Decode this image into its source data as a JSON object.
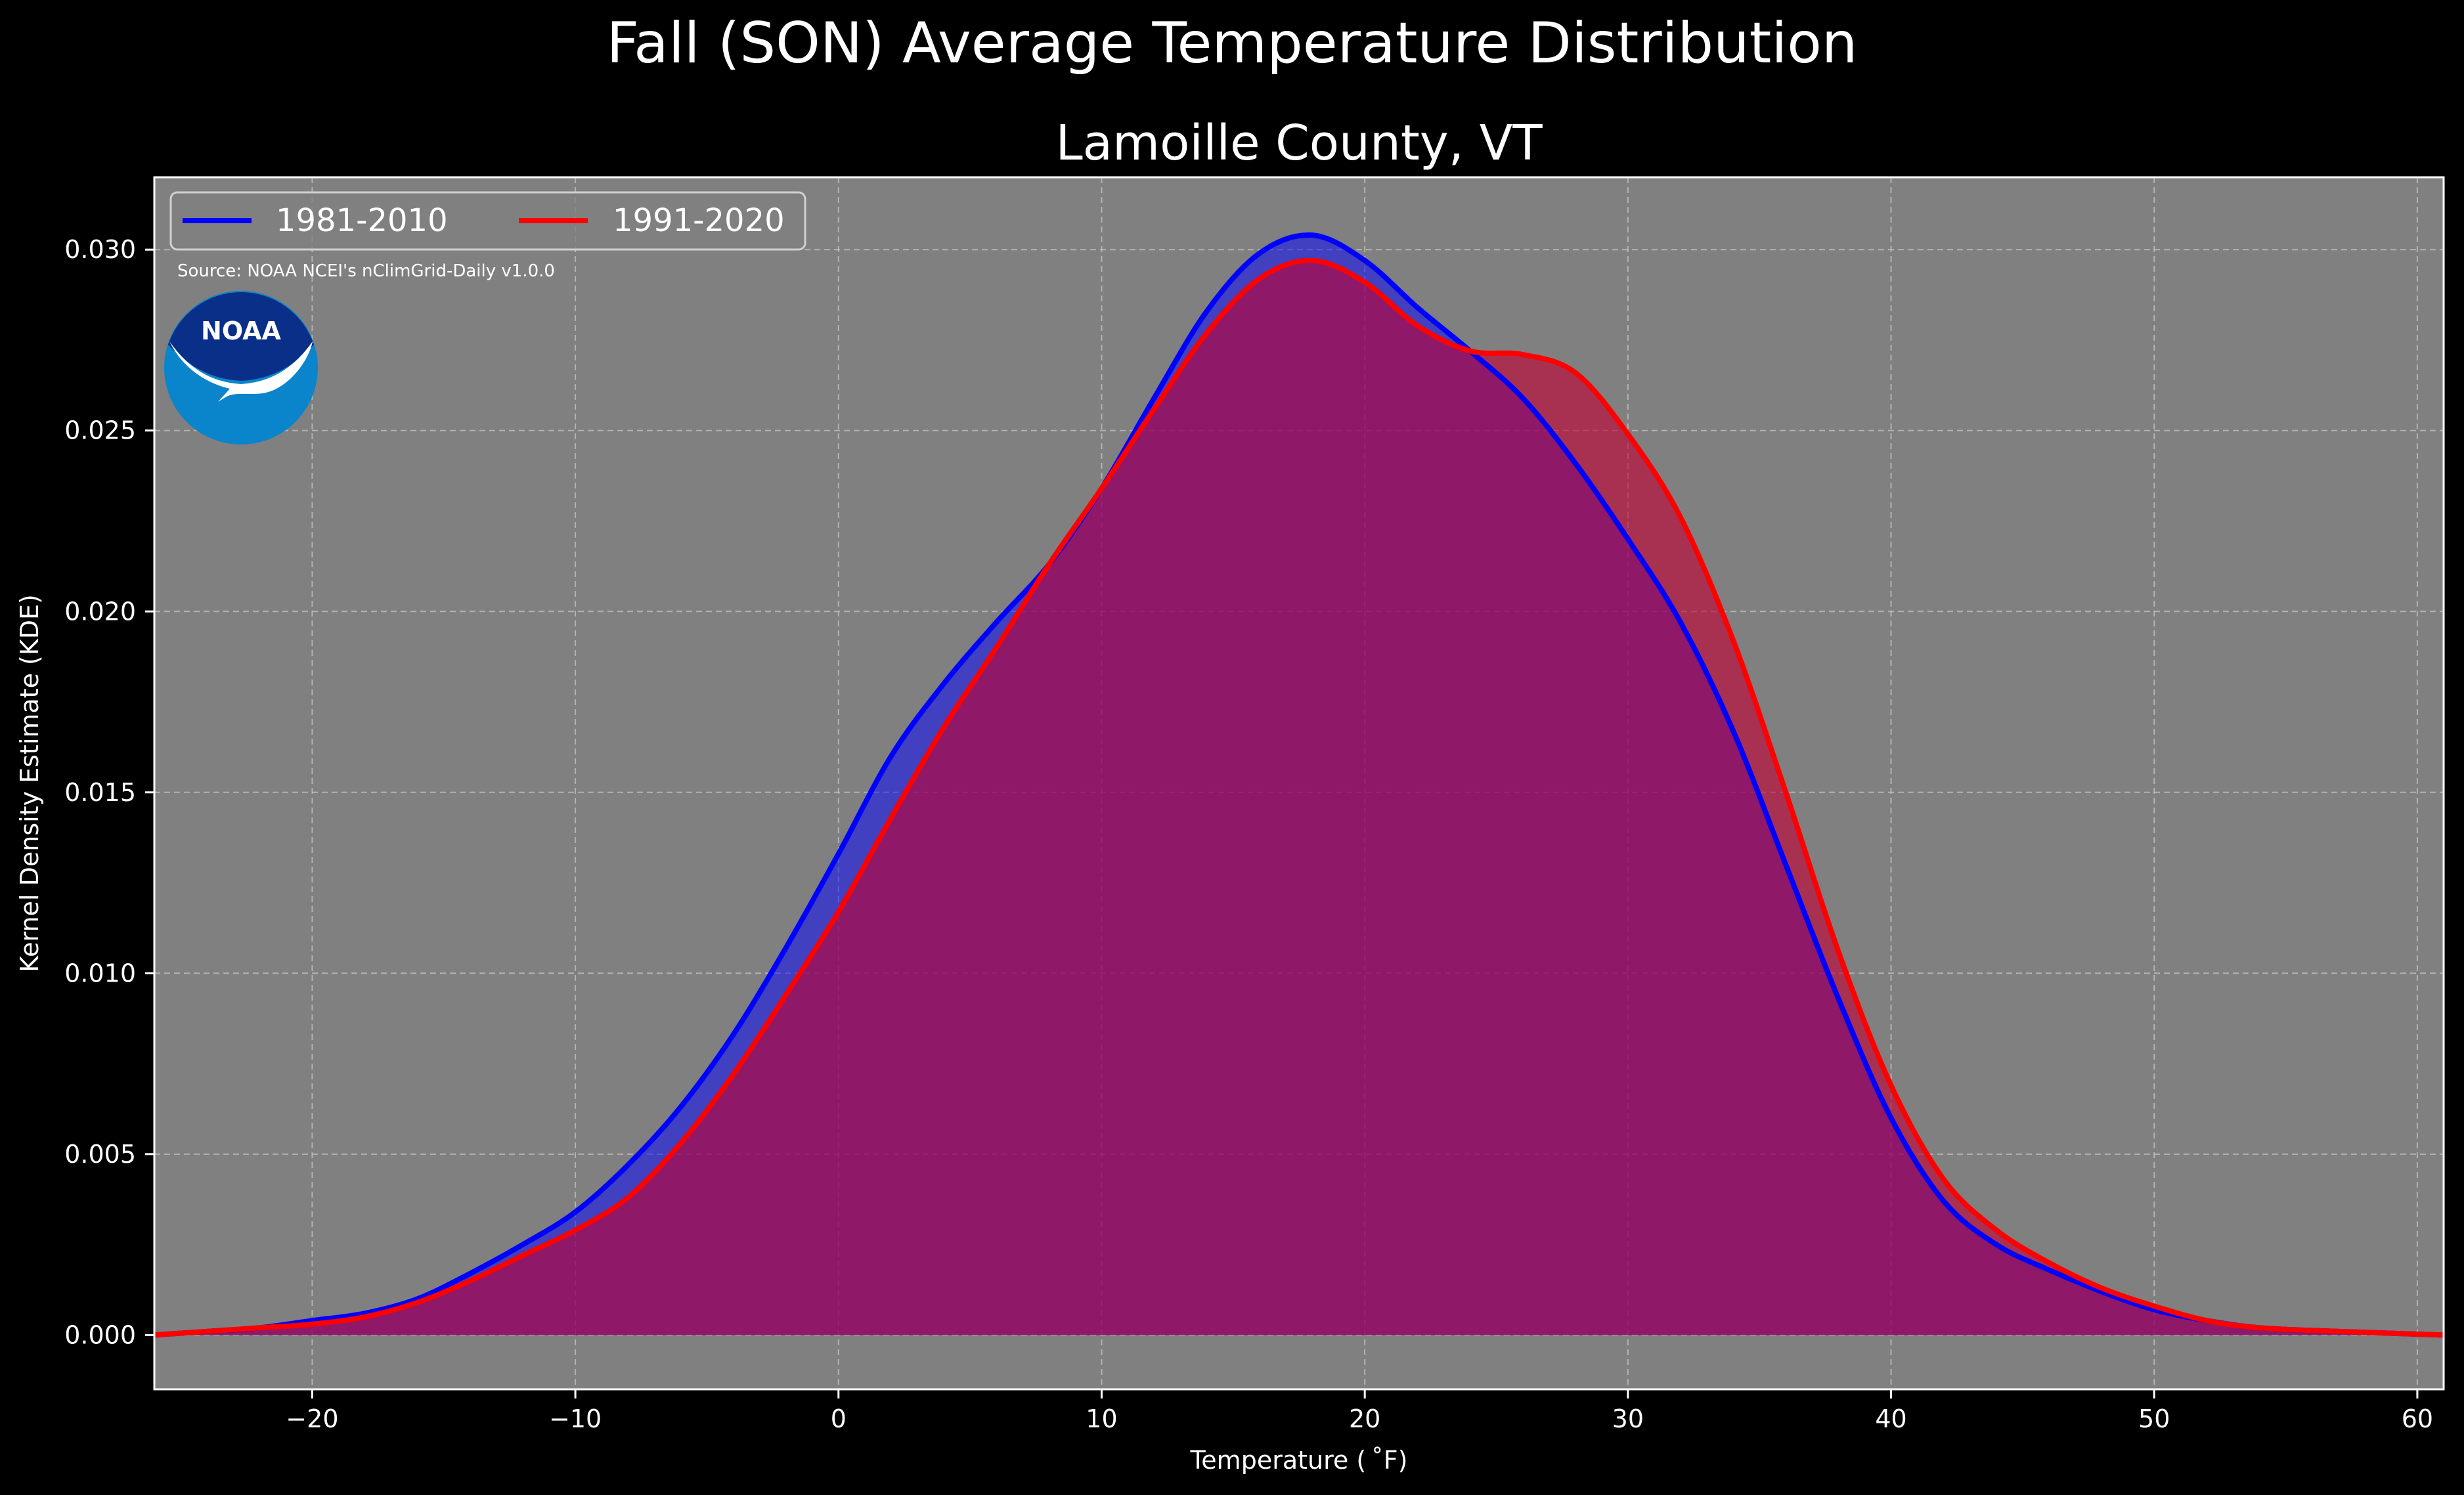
{
  "chart_data": {
    "type": "area",
    "title": "Fall (SON) Average Temperature Distribution",
    "subtitle": "Lamoille County, VT",
    "xlabel": "Temperature ($^\\circ$F)",
    "xlabel_display": "Temperature ( ˚F)",
    "ylabel": "Kernel Density Estimate (KDE)",
    "xlim": [
      -26,
      61
    ],
    "ylim": [
      -0.0015,
      0.032
    ],
    "xticks": [
      -20,
      -10,
      0,
      10,
      20,
      30,
      40,
      50,
      60
    ],
    "xtick_labels": [
      "−20",
      "−10",
      "0",
      "10",
      "20",
      "30",
      "40",
      "50",
      "60"
    ],
    "yticks": [
      0.0,
      0.005,
      0.01,
      0.015,
      0.02,
      0.025,
      0.03
    ],
    "ytick_labels": [
      "0.000",
      "0.005",
      "0.010",
      "0.015",
      "0.020",
      "0.025",
      "0.030"
    ],
    "grid": true,
    "legend_position": "top-left",
    "annotation": "Source: NOAA NCEI's nClimGrid-Daily v1.0.0",
    "logo_text": "NOAA",
    "background": "#808080",
    "series": [
      {
        "name": "1981-2010",
        "color": "#0000ff",
        "fill": "#0000ff",
        "points": [
          [
            -26,
            0.0
          ],
          [
            -24,
            0.0001
          ],
          [
            -22,
            0.0002
          ],
          [
            -20,
            0.0004
          ],
          [
            -18,
            0.0006
          ],
          [
            -16,
            0.001
          ],
          [
            -14,
            0.0017
          ],
          [
            -12,
            0.0025
          ],
          [
            -10,
            0.0034
          ],
          [
            -8,
            0.0047
          ],
          [
            -6,
            0.0063
          ],
          [
            -4,
            0.0083
          ],
          [
            -2,
            0.0107
          ],
          [
            0,
            0.0133
          ],
          [
            2,
            0.016
          ],
          [
            4,
            0.018
          ],
          [
            6,
            0.0197
          ],
          [
            8,
            0.0213
          ],
          [
            10,
            0.0234
          ],
          [
            12,
            0.0259
          ],
          [
            14,
            0.0283
          ],
          [
            16,
            0.0299
          ],
          [
            18,
            0.0304
          ],
          [
            20,
            0.0297
          ],
          [
            22,
            0.0284
          ],
          [
            24,
            0.0272
          ],
          [
            26,
            0.0259
          ],
          [
            28,
            0.0241
          ],
          [
            30,
            0.022
          ],
          [
            32,
            0.0197
          ],
          [
            34,
            0.0167
          ],
          [
            36,
            0.013
          ],
          [
            38,
            0.0093
          ],
          [
            40,
            0.006
          ],
          [
            42,
            0.0037
          ],
          [
            44,
            0.0025
          ],
          [
            46,
            0.0018
          ],
          [
            48,
            0.0012
          ],
          [
            50,
            0.0007
          ],
          [
            52,
            0.0004
          ],
          [
            54,
            0.0002
          ],
          [
            57,
            0.0001
          ],
          [
            61,
            0.0
          ]
        ]
      },
      {
        "name": "1991-2020",
        "color": "#ff0000",
        "fill": "#c00033",
        "points": [
          [
            -26,
            0.0
          ],
          [
            -24,
            0.0001
          ],
          [
            -22,
            0.0002
          ],
          [
            -20,
            0.0003
          ],
          [
            -18,
            0.0005
          ],
          [
            -16,
            0.0009
          ],
          [
            -14,
            0.0015
          ],
          [
            -12,
            0.0022
          ],
          [
            -10,
            0.0029
          ],
          [
            -8,
            0.0038
          ],
          [
            -6,
            0.0053
          ],
          [
            -4,
            0.0072
          ],
          [
            -2,
            0.0094
          ],
          [
            0,
            0.0117
          ],
          [
            2,
            0.0143
          ],
          [
            4,
            0.0168
          ],
          [
            6,
            0.019
          ],
          [
            8,
            0.0213
          ],
          [
            10,
            0.0234
          ],
          [
            12,
            0.0256
          ],
          [
            14,
            0.0277
          ],
          [
            16,
            0.0292
          ],
          [
            18,
            0.0297
          ],
          [
            20,
            0.0291
          ],
          [
            22,
            0.0279
          ],
          [
            24,
            0.0272
          ],
          [
            26,
            0.0271
          ],
          [
            28,
            0.0266
          ],
          [
            30,
            0.0249
          ],
          [
            32,
            0.0226
          ],
          [
            34,
            0.0192
          ],
          [
            36,
            0.015
          ],
          [
            38,
            0.0106
          ],
          [
            40,
            0.0069
          ],
          [
            42,
            0.0043
          ],
          [
            44,
            0.0029
          ],
          [
            46,
            0.002
          ],
          [
            48,
            0.0013
          ],
          [
            50,
            0.0008
          ],
          [
            52,
            0.0004
          ],
          [
            54,
            0.0002
          ],
          [
            57,
            0.0001
          ],
          [
            61,
            0.0
          ]
        ]
      }
    ]
  }
}
